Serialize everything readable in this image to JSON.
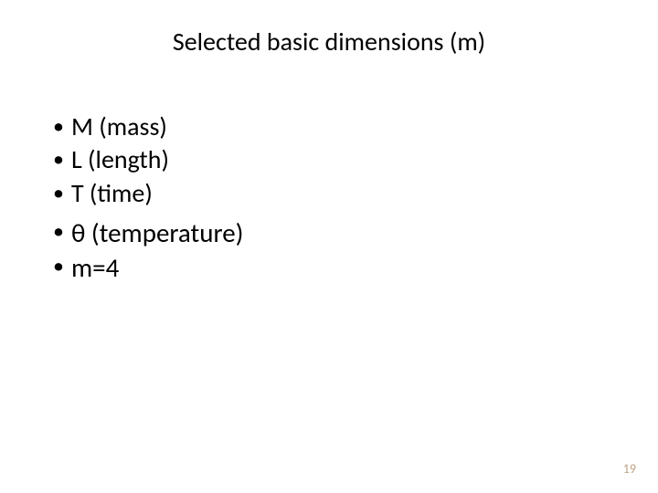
{
  "title": "Selected basic dimensions (m)",
  "bullets": {
    "groupA": [
      "M (mass)",
      " L (length)",
      " T (time)"
    ],
    "groupB": [
      "θ (temperature)",
      " m=4"
    ]
  },
  "pageNumber": "19",
  "styling": {
    "background_color": "#ffffff",
    "text_color": "#000000",
    "page_number_color": "#bfa385",
    "title_fontsize": 28,
    "groupA_fontsize": 28,
    "groupB_fontsize": 29,
    "page_number_fontsize": 14,
    "font_family": "Calibri"
  }
}
